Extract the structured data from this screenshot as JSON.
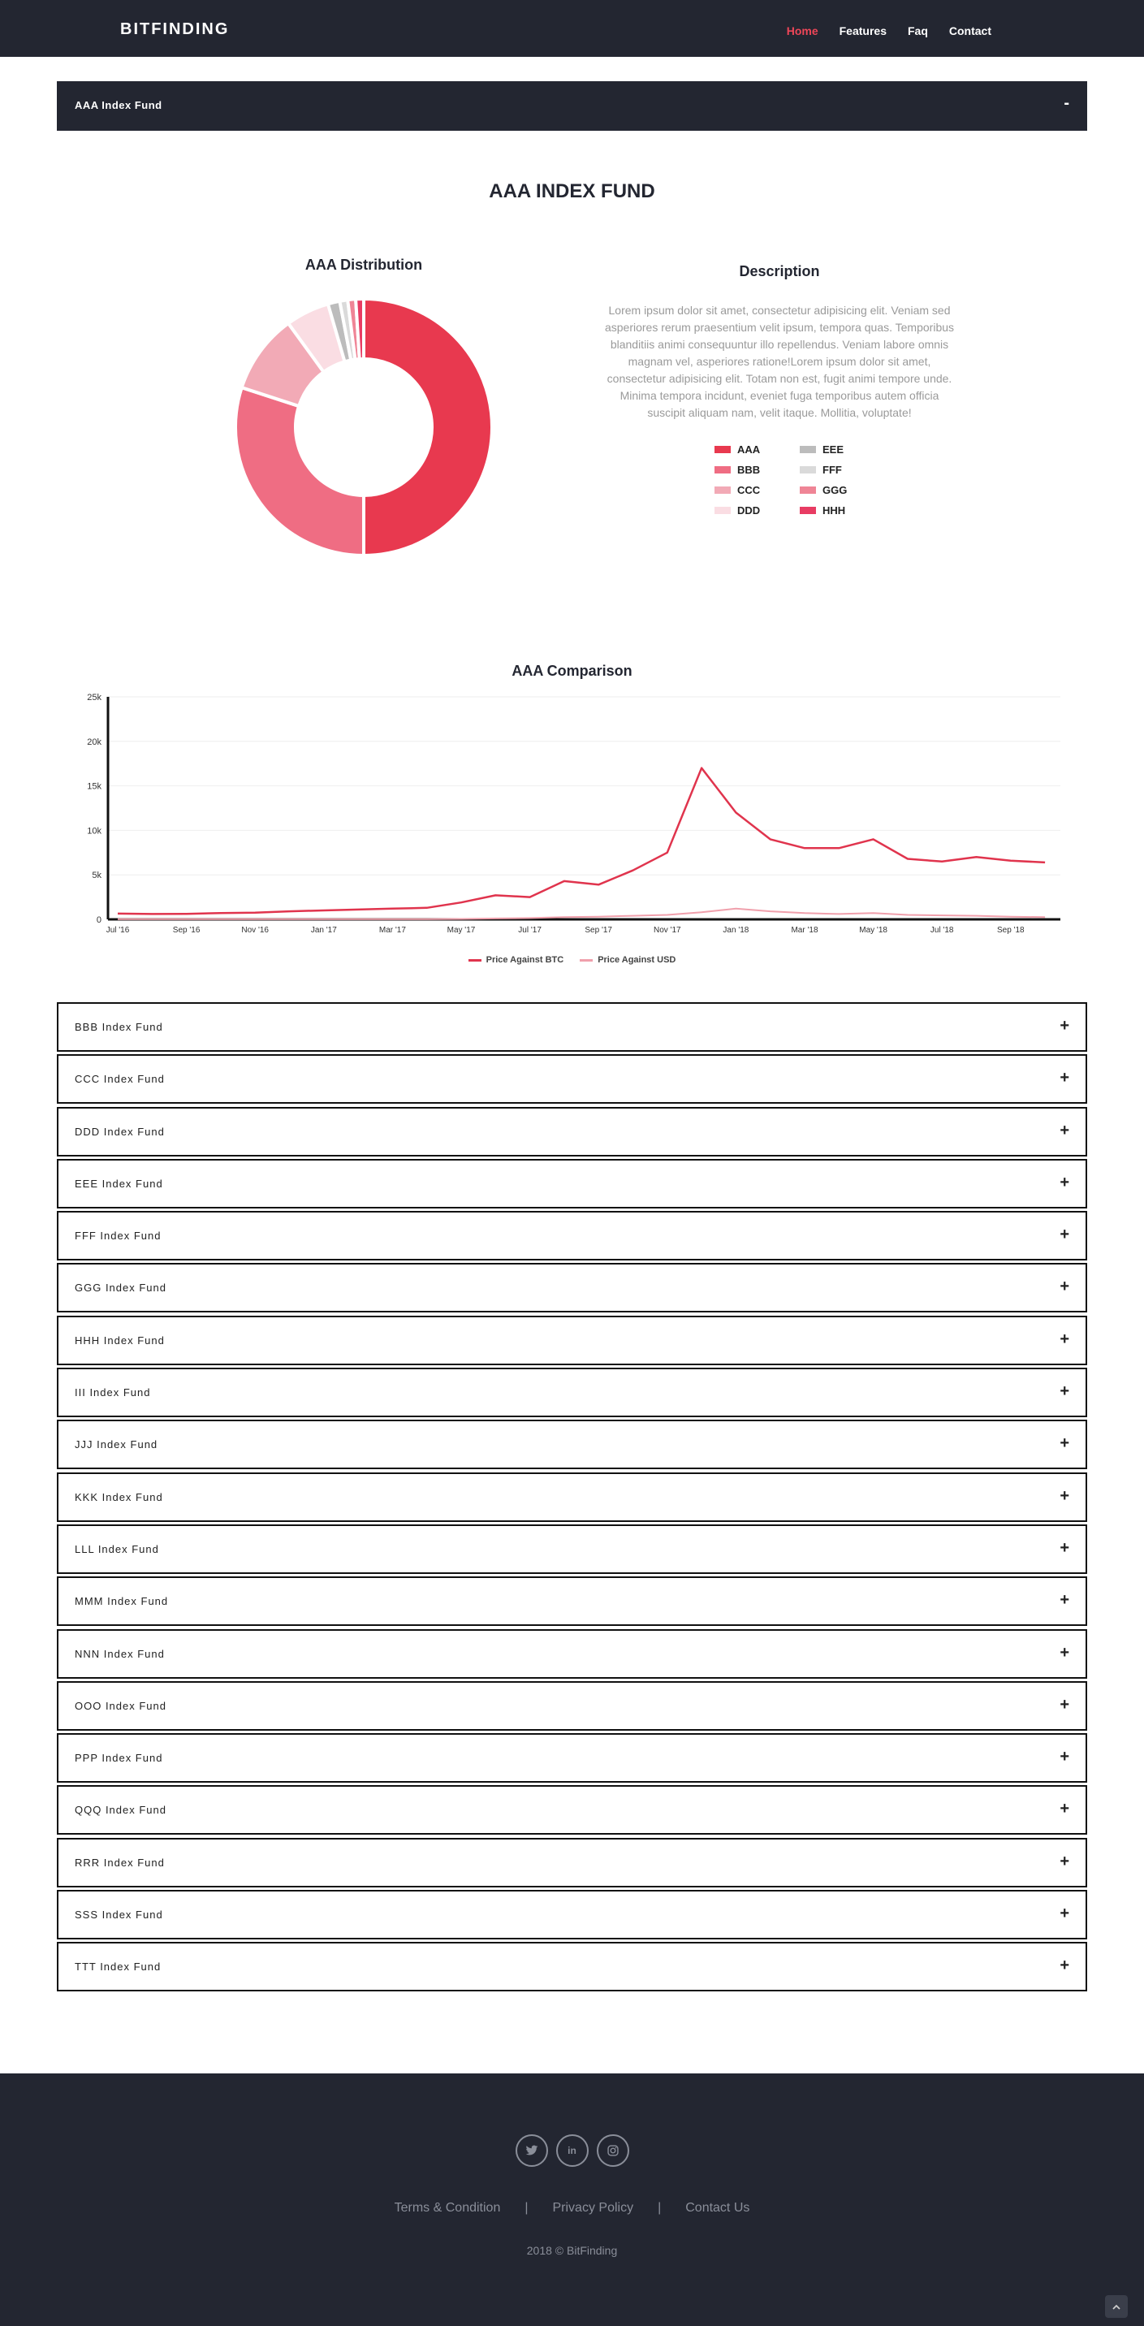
{
  "nav": {
    "brand": "BITFINDING",
    "links": [
      "Home",
      "Features",
      "Faq",
      "Contact"
    ],
    "active": "Home"
  },
  "open_fund": {
    "label": "AAA Index Fund",
    "toggle": "-",
    "title": "AAA INDEX FUND",
    "description_title": "Description",
    "description": "Lorem ipsum dolor sit amet, consectetur adipisicing elit. Veniam sed asperiores rerum praesentium velit ipsum, tempora quas. Temporibus blanditiis animi consequuntur illo repellendus. Veniam labore omnis magnam vel, asperiores ratione!Lorem ipsum dolor sit amet, consectetur adipisicing elit. Totam non est, fugit animi tempore unde. Minima tempora incidunt, eveniet fuga temporibus autem officia suscipit aliquam nam, velit itaque. Mollitia, voluptate!"
  },
  "chart_data": [
    {
      "type": "pie",
      "title": "AAA Distribution",
      "categories": [
        "AAA",
        "BBB",
        "CCC",
        "DDD",
        "EEE",
        "FFF",
        "GGG",
        "HHH"
      ],
      "values": [
        50,
        30,
        10,
        5.5,
        1.5,
        1.0,
        1.0,
        1.0
      ],
      "colors": [
        "#e8394f",
        "#ef6d83",
        "#f2aab6",
        "#fadde3",
        "#bcbcbc",
        "#dadada",
        "#ef8596",
        "#e83c63"
      ]
    },
    {
      "type": "line",
      "title": "AAA Comparison",
      "x_ticks": [
        "Jul '16",
        "Sep '16",
        "Nov '16",
        "Jan '17",
        "Mar '17",
        "May '17",
        "Jul '17",
        "Sep '17",
        "Nov '17",
        "Jan '18",
        "Mar '18",
        "May '18",
        "Jul '18",
        "Sep '18"
      ],
      "y_ticks": [
        "0",
        "5k",
        "10k",
        "15k",
        "20k",
        "25k"
      ],
      "ylim": [
        0,
        25000
      ],
      "series": [
        {
          "name": "Price Against BTC",
          "color": "#e0344d",
          "x": [
            "2016-07",
            "2016-08",
            "2016-09",
            "2016-10",
            "2016-11",
            "2016-12",
            "2017-01",
            "2017-02",
            "2017-03",
            "2017-04",
            "2017-05",
            "2017-06",
            "2017-07",
            "2017-08",
            "2017-09",
            "2017-10",
            "2017-11",
            "2017-12",
            "2018-01",
            "2018-02",
            "2018-03",
            "2018-04",
            "2018-05",
            "2018-06",
            "2018-07",
            "2018-08",
            "2018-09",
            "2018-10"
          ],
          "values": [
            650,
            600,
            620,
            700,
            750,
            900,
            1000,
            1100,
            1200,
            1300,
            1900,
            2700,
            2500,
            4300,
            3900,
            5500,
            7500,
            17000,
            12000,
            9000,
            8000,
            8000,
            9000,
            6800,
            6500,
            7000,
            6600,
            6400
          ]
        },
        {
          "name": "Price Against USD",
          "color": "#f0a0ac",
          "x": [
            "2016-07",
            "2016-08",
            "2016-09",
            "2016-10",
            "2016-11",
            "2016-12",
            "2017-01",
            "2017-02",
            "2017-03",
            "2017-04",
            "2017-05",
            "2017-06",
            "2017-07",
            "2017-08",
            "2017-09",
            "2017-10",
            "2017-11",
            "2017-12",
            "2018-01",
            "2018-02",
            "2018-03",
            "2018-04",
            "2018-05",
            "2018-06",
            "2018-07",
            "2018-08",
            "2018-09",
            "2018-10"
          ],
          "values": [
            20,
            20,
            20,
            20,
            20,
            20,
            20,
            20,
            30,
            30,
            50,
            100,
            150,
            250,
            300,
            400,
            500,
            800,
            1200,
            900,
            700,
            600,
            700,
            500,
            450,
            400,
            300,
            250
          ]
        }
      ]
    }
  ],
  "funds": [
    {
      "label": "BBB Index Fund",
      "toggle": "+"
    },
    {
      "label": "CCC Index Fund",
      "toggle": "+"
    },
    {
      "label": "DDD Index Fund",
      "toggle": "+"
    },
    {
      "label": "EEE Index Fund",
      "toggle": "+"
    },
    {
      "label": "FFF Index Fund",
      "toggle": "+"
    },
    {
      "label": "GGG Index Fund",
      "toggle": "+"
    },
    {
      "label": "HHH Index Fund",
      "toggle": "+"
    },
    {
      "label": "III Index Fund",
      "toggle": "+"
    },
    {
      "label": "JJJ Index Fund",
      "toggle": "+"
    },
    {
      "label": "KKK Index Fund",
      "toggle": "+"
    },
    {
      "label": "LLL Index Fund",
      "toggle": "+"
    },
    {
      "label": "MMM Index Fund",
      "toggle": "+"
    },
    {
      "label": "NNN Index Fund",
      "toggle": "+"
    },
    {
      "label": "OOO Index Fund",
      "toggle": "+"
    },
    {
      "label": "PPP Index Fund",
      "toggle": "+"
    },
    {
      "label": "QQQ Index Fund",
      "toggle": "+"
    },
    {
      "label": "RRR Index Fund",
      "toggle": "+"
    },
    {
      "label": "SSS Index Fund",
      "toggle": "+"
    },
    {
      "label": "TTT Index Fund",
      "toggle": "+"
    }
  ],
  "footer": {
    "social_icons": [
      "twitter-icon",
      "linkedin-icon",
      "instagram-icon"
    ],
    "links": [
      "Terms & Condition",
      "Privacy Policy",
      "Contact Us"
    ],
    "separator": "|",
    "copyright": "2018 © BitFinding"
  }
}
